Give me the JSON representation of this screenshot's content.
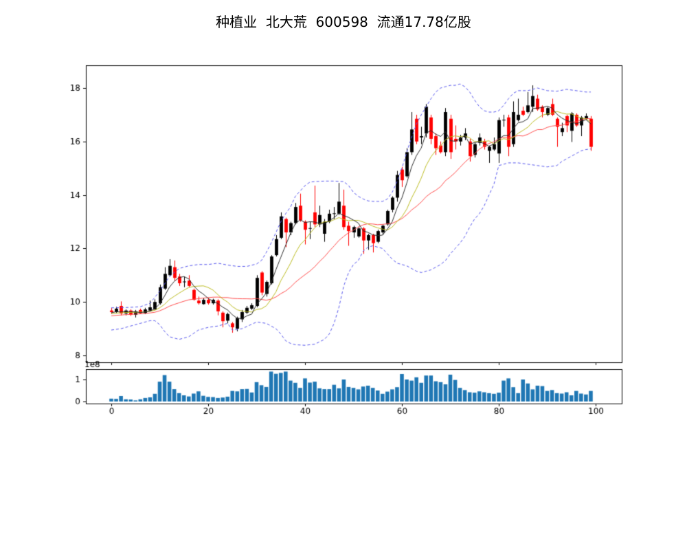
{
  "title": "种植业  北大荒  600598  流通17.78亿股",
  "chart_data": {
    "type": "candlestick",
    "title": "种植业  北大荒  600598  流通17.78亿股",
    "legend": "none",
    "grid": false,
    "panels": [
      "price-candles-with-ma-and-bands",
      "volume-bars"
    ],
    "x": {
      "ticks": [
        0,
        20,
        40,
        60,
        80,
        100
      ],
      "tick_labels": [
        "0",
        "20",
        "40",
        "60",
        "80",
        "100"
      ],
      "data_range": [
        0,
        99
      ],
      "xlim": [
        -5.2,
        105.2
      ]
    },
    "price_axis": {
      "ticks": [
        8,
        10,
        12,
        14,
        16,
        18
      ],
      "tick_labels": [
        "8",
        "10",
        "12",
        "14",
        "16",
        "18"
      ],
      "ylim": [
        7.74,
        18.85
      ]
    },
    "volume_axis": {
      "ticks": [
        0,
        1
      ],
      "tick_labels": [
        "0",
        "1"
      ],
      "offset_label": "1e8",
      "unit": 100000000,
      "ylim": [
        -0.1,
        1.45
      ]
    },
    "ma_windows": {
      "fast": 5,
      "mid": 10,
      "slow": 20
    },
    "prehistory_close": [
      9.3,
      9.38,
      9.32,
      9.4,
      9.35,
      9.42,
      9.38,
      9.45,
      9.4,
      9.48,
      9.45,
      9.5,
      9.48,
      9.55,
      9.5,
      9.58,
      9.55,
      9.6,
      9.58,
      9.62
    ],
    "ohlc": [
      [
        9.68,
        9.78,
        9.55,
        9.62
      ],
      [
        9.62,
        9.82,
        9.58,
        9.75
      ],
      [
        9.85,
        10.02,
        9.5,
        9.57
      ],
      [
        9.57,
        9.72,
        9.5,
        9.68
      ],
      [
        9.68,
        9.72,
        9.48,
        9.52
      ],
      [
        9.52,
        9.7,
        9.42,
        9.65
      ],
      [
        9.7,
        9.75,
        9.55,
        9.58
      ],
      [
        9.58,
        9.78,
        9.55,
        9.72
      ],
      [
        9.68,
        10.05,
        9.65,
        9.8
      ],
      [
        9.72,
        10.1,
        9.7,
        10.0
      ],
      [
        9.95,
        10.65,
        9.9,
        10.55
      ],
      [
        10.5,
        11.3,
        10.45,
        11.05
      ],
      [
        11.0,
        11.6,
        10.95,
        11.35
      ],
      [
        11.3,
        11.55,
        10.8,
        10.9
      ],
      [
        10.95,
        11.05,
        10.6,
        10.7
      ],
      [
        10.75,
        10.95,
        10.55,
        10.75
      ],
      [
        10.8,
        11.0,
        10.55,
        10.6
      ],
      [
        10.45,
        10.5,
        10.05,
        10.08
      ],
      [
        10.05,
        10.2,
        9.9,
        9.95
      ],
      [
        9.92,
        10.15,
        9.9,
        10.08
      ],
      [
        10.08,
        10.15,
        9.9,
        9.95
      ],
      [
        9.95,
        10.12,
        9.9,
        10.08
      ],
      [
        10.05,
        10.1,
        9.5,
        9.65
      ],
      [
        9.6,
        9.65,
        9.05,
        9.28
      ],
      [
        9.3,
        9.6,
        9.2,
        9.55
      ],
      [
        9.2,
        9.25,
        8.85,
        9.05
      ],
      [
        9.0,
        9.45,
        8.9,
        9.4
      ],
      [
        9.35,
        9.7,
        9.25,
        9.62
      ],
      [
        9.6,
        9.85,
        9.55,
        9.78
      ],
      [
        9.75,
        9.95,
        9.7,
        9.88
      ],
      [
        9.85,
        11.0,
        9.8,
        10.9
      ],
      [
        11.1,
        11.15,
        10.25,
        10.35
      ],
      [
        10.3,
        10.8,
        10.2,
        10.75
      ],
      [
        10.7,
        11.75,
        10.65,
        11.7
      ],
      [
        11.75,
        12.5,
        11.7,
        12.35
      ],
      [
        12.4,
        13.35,
        12.35,
        13.2
      ],
      [
        13.1,
        13.15,
        12.05,
        12.6
      ],
      [
        12.6,
        13.0,
        12.5,
        12.95
      ],
      [
        12.95,
        13.7,
        12.9,
        13.55
      ],
      [
        13.6,
        14.05,
        13.0,
        13.05
      ],
      [
        13.0,
        13.05,
        12.15,
        12.7
      ],
      [
        12.75,
        13.0,
        12.35,
        12.75
      ],
      [
        13.35,
        14.35,
        12.8,
        12.9
      ],
      [
        12.9,
        13.6,
        12.8,
        13.25
      ],
      [
        12.55,
        13.1,
        12.25,
        13.0
      ],
      [
        13.0,
        13.45,
        12.95,
        13.3
      ],
      [
        13.3,
        13.55,
        13.1,
        13.3
      ],
      [
        13.3,
        14.45,
        13.25,
        13.75
      ],
      [
        13.6,
        14.2,
        12.7,
        12.8
      ],
      [
        12.85,
        13.0,
        12.1,
        12.65
      ],
      [
        12.6,
        12.85,
        12.4,
        12.8
      ],
      [
        12.45,
        12.8,
        12.4,
        12.75
      ],
      [
        12.75,
        12.8,
        11.8,
        12.3
      ],
      [
        12.3,
        12.55,
        11.95,
        12.5
      ],
      [
        12.5,
        12.55,
        11.85,
        12.2
      ],
      [
        12.25,
        12.7,
        12.2,
        12.65
      ],
      [
        12.6,
        12.9,
        12.5,
        12.85
      ],
      [
        12.9,
        13.45,
        12.85,
        13.4
      ],
      [
        13.45,
        13.95,
        13.35,
        13.9
      ],
      [
        13.9,
        14.9,
        13.75,
        14.75
      ],
      [
        14.95,
        15.05,
        14.3,
        14.55
      ],
      [
        14.7,
        15.75,
        14.65,
        15.6
      ],
      [
        15.6,
        17.1,
        15.5,
        16.45
      ],
      [
        16.85,
        17.0,
        15.9,
        16.0
      ],
      [
        16.15,
        16.55,
        15.9,
        16.2
      ],
      [
        16.3,
        17.4,
        16.15,
        17.3
      ],
      [
        16.9,
        17.0,
        15.9,
        16.1
      ],
      [
        16.2,
        16.3,
        15.5,
        15.75
      ],
      [
        15.85,
        16.0,
        15.55,
        15.6
      ],
      [
        15.6,
        17.25,
        15.45,
        17.1
      ],
      [
        16.85,
        17.0,
        15.35,
        15.6
      ],
      [
        16.1,
        16.6,
        15.7,
        16.0
      ],
      [
        16.0,
        16.25,
        15.85,
        16.15
      ],
      [
        16.15,
        16.5,
        16.05,
        16.3
      ],
      [
        16.0,
        16.1,
        15.25,
        15.45
      ],
      [
        15.5,
        15.95,
        15.4,
        15.9
      ],
      [
        15.95,
        16.3,
        15.85,
        16.15
      ],
      [
        16.0,
        16.1,
        15.7,
        15.8
      ],
      [
        15.65,
        15.85,
        15.2,
        15.8
      ],
      [
        15.7,
        16.15,
        15.65,
        15.9
      ],
      [
        15.55,
        16.9,
        15.2,
        16.8
      ],
      [
        16.8,
        17.0,
        16.55,
        16.8
      ],
      [
        16.9,
        17.0,
        15.45,
        15.8
      ],
      [
        15.9,
        17.5,
        15.8,
        17.1
      ],
      [
        16.8,
        17.6,
        16.75,
        17.0
      ],
      [
        17.15,
        17.3,
        16.95,
        17.0
      ],
      [
        17.1,
        17.85,
        17.05,
        17.35
      ],
      [
        17.3,
        18.1,
        17.1,
        17.7
      ],
      [
        17.6,
        17.75,
        17.15,
        17.2
      ],
      [
        17.3,
        17.35,
        16.9,
        17.1
      ],
      [
        17.0,
        17.3,
        16.95,
        17.25
      ],
      [
        17.4,
        17.6,
        16.95,
        17.0
      ],
      [
        16.85,
        16.9,
        15.8,
        16.55
      ],
      [
        16.35,
        16.7,
        16.2,
        16.5
      ],
      [
        16.95,
        17.0,
        16.35,
        16.6
      ],
      [
        16.4,
        17.1,
        15.98,
        17.05
      ],
      [
        17.0,
        17.05,
        16.55,
        16.6
      ],
      [
        16.6,
        16.95,
        16.2,
        16.9
      ],
      [
        16.85,
        17.05,
        16.8,
        16.95
      ],
      [
        16.85,
        16.95,
        15.65,
        15.8
      ]
    ],
    "volume_1e8": [
      0.13,
      0.12,
      0.25,
      0.1,
      0.09,
      0.05,
      0.1,
      0.16,
      0.19,
      0.35,
      0.9,
      1.2,
      0.9,
      0.56,
      0.38,
      0.28,
      0.23,
      0.36,
      0.46,
      0.26,
      0.21,
      0.2,
      0.16,
      0.18,
      0.22,
      0.48,
      0.46,
      0.56,
      0.57,
      0.41,
      0.88,
      0.74,
      0.66,
      1.36,
      1.26,
      1.3,
      1.36,
      0.95,
      0.85,
      0.62,
      1.05,
      0.86,
      0.9,
      0.6,
      0.56,
      0.56,
      0.76,
      0.6,
      1.0,
      0.66,
      0.62,
      0.55,
      0.68,
      0.72,
      0.62,
      0.5,
      0.35,
      0.45,
      0.55,
      0.65,
      1.25,
      1.0,
      0.95,
      1.1,
      0.85,
      1.18,
      1.18,
      0.92,
      0.88,
      0.78,
      1.22,
      0.98,
      0.62,
      0.52,
      0.42,
      0.4,
      0.46,
      0.42,
      0.38,
      0.35,
      0.4,
      0.95,
      1.05,
      0.65,
      0.38,
      1.0,
      0.82,
      0.55,
      0.72,
      0.7,
      0.48,
      0.52,
      0.38,
      0.36,
      0.42,
      0.28,
      0.48,
      0.36,
      0.32,
      0.48
    ],
    "band_upper": [
      [
        0,
        9.78
      ],
      [
        3,
        9.79
      ],
      [
        6,
        9.82
      ],
      [
        8,
        9.95
      ],
      [
        10,
        10.4
      ],
      [
        12,
        10.95
      ],
      [
        14,
        11.25
      ],
      [
        16,
        11.35
      ],
      [
        18,
        11.4
      ],
      [
        20,
        11.4
      ],
      [
        22,
        11.45
      ],
      [
        24,
        11.38
      ],
      [
        26,
        11.33
      ],
      [
        28,
        11.33
      ],
      [
        30,
        11.42
      ],
      [
        31,
        11.55
      ],
      [
        32,
        11.85
      ],
      [
        33,
        12.2
      ],
      [
        34,
        12.6
      ],
      [
        35,
        13.0
      ],
      [
        36,
        13.3
      ],
      [
        37,
        13.55
      ],
      [
        38,
        13.95
      ],
      [
        39,
        14.15
      ],
      [
        40,
        14.35
      ],
      [
        41,
        14.48
      ],
      [
        42,
        14.5
      ],
      [
        44,
        14.52
      ],
      [
        46,
        14.52
      ],
      [
        48,
        14.5
      ],
      [
        49,
        14.35
      ],
      [
        50,
        14.1
      ],
      [
        51,
        13.95
      ],
      [
        52,
        13.85
      ],
      [
        53,
        13.78
      ],
      [
        54,
        13.76
      ],
      [
        55,
        13.76
      ],
      [
        56,
        13.76
      ],
      [
        57,
        13.85
      ],
      [
        58,
        14.1
      ],
      [
        59,
        14.5
      ],
      [
        60,
        15.0
      ],
      [
        61,
        15.6
      ],
      [
        62,
        16.15
      ],
      [
        63,
        16.65
      ],
      [
        64,
        17.0
      ],
      [
        65,
        17.3
      ],
      [
        66,
        17.6
      ],
      [
        67,
        17.85
      ],
      [
        68,
        18.0
      ],
      [
        69,
        18.05
      ],
      [
        70,
        18.1
      ],
      [
        71,
        18.1
      ],
      [
        72,
        18.15
      ],
      [
        73,
        18.05
      ],
      [
        74,
        17.85
      ],
      [
        75,
        17.55
      ],
      [
        76,
        17.3
      ],
      [
        77,
        17.15
      ],
      [
        78,
        17.1
      ],
      [
        79,
        17.1
      ],
      [
        80,
        17.15
      ],
      [
        81,
        17.35
      ],
      [
        82,
        17.6
      ],
      [
        83,
        17.8
      ],
      [
        84,
        17.9
      ],
      [
        86,
        17.9
      ],
      [
        88,
        18.0
      ],
      [
        90,
        17.9
      ],
      [
        92,
        17.88
      ],
      [
        94,
        17.95
      ],
      [
        96,
        17.9
      ],
      [
        98,
        17.85
      ],
      [
        99,
        17.85
      ]
    ],
    "band_lower": [
      [
        0,
        8.95
      ],
      [
        2,
        9.0
      ],
      [
        4,
        9.1
      ],
      [
        6,
        9.2
      ],
      [
        8,
        9.3
      ],
      [
        9,
        9.3
      ],
      [
        10,
        9.15
      ],
      [
        11,
        8.9
      ],
      [
        12,
        8.7
      ],
      [
        14,
        8.6
      ],
      [
        16,
        8.7
      ],
      [
        18,
        8.95
      ],
      [
        20,
        9.05
      ],
      [
        22,
        9.1
      ],
      [
        24,
        9.2
      ],
      [
        25,
        8.95
      ],
      [
        27,
        9.0
      ],
      [
        30,
        9.25
      ],
      [
        32,
        9.2
      ],
      [
        34,
        9.0
      ],
      [
        35,
        8.8
      ],
      [
        36,
        8.55
      ],
      [
        37,
        8.45
      ],
      [
        38,
        8.4
      ],
      [
        40,
        8.38
      ],
      [
        42,
        8.42
      ],
      [
        44,
        8.6
      ],
      [
        45,
        8.8
      ],
      [
        46,
        9.2
      ],
      [
        47,
        9.8
      ],
      [
        48,
        10.6
      ],
      [
        49,
        11.1
      ],
      [
        50,
        11.4
      ],
      [
        51,
        11.55
      ],
      [
        52,
        11.9
      ],
      [
        53,
        12.05
      ],
      [
        54,
        12.1
      ],
      [
        55,
        12.05
      ],
      [
        56,
        12.0
      ],
      [
        57,
        11.8
      ],
      [
        58,
        11.6
      ],
      [
        59,
        11.45
      ],
      [
        60,
        11.4
      ],
      [
        61,
        11.35
      ],
      [
        62,
        11.25
      ],
      [
        63,
        11.15
      ],
      [
        64,
        11.1
      ],
      [
        65,
        11.15
      ],
      [
        66,
        11.2
      ],
      [
        67,
        11.3
      ],
      [
        68,
        11.4
      ],
      [
        69,
        11.55
      ],
      [
        70,
        11.8
      ],
      [
        71,
        12.0
      ],
      [
        72,
        12.2
      ],
      [
        73,
        12.45
      ],
      [
        74,
        12.8
      ],
      [
        75,
        13.1
      ],
      [
        76,
        13.3
      ],
      [
        77,
        13.6
      ],
      [
        78,
        14.0
      ],
      [
        79,
        14.4
      ],
      [
        80,
        15.1
      ],
      [
        82,
        15.2
      ],
      [
        84,
        15.2
      ],
      [
        86,
        15.15
      ],
      [
        88,
        15.1
      ],
      [
        90,
        15.05
      ],
      [
        92,
        15.1
      ],
      [
        93,
        15.25
      ],
      [
        94,
        15.35
      ],
      [
        95,
        15.45
      ],
      [
        96,
        15.55
      ],
      [
        97,
        15.65
      ],
      [
        98,
        15.7
      ],
      [
        99,
        15.72
      ]
    ],
    "colors": {
      "up_candle": "#000000",
      "down_candle": "#ff0000",
      "ma_fast": "#2b2b2b",
      "ma_mid": "#bdbd22",
      "ma_slow": "#ff4d4d",
      "band": "#5555ee",
      "volume_bar": "#1f77b4",
      "spine": "#000000",
      "text": "#000000",
      "background": "#ffffff"
    }
  }
}
